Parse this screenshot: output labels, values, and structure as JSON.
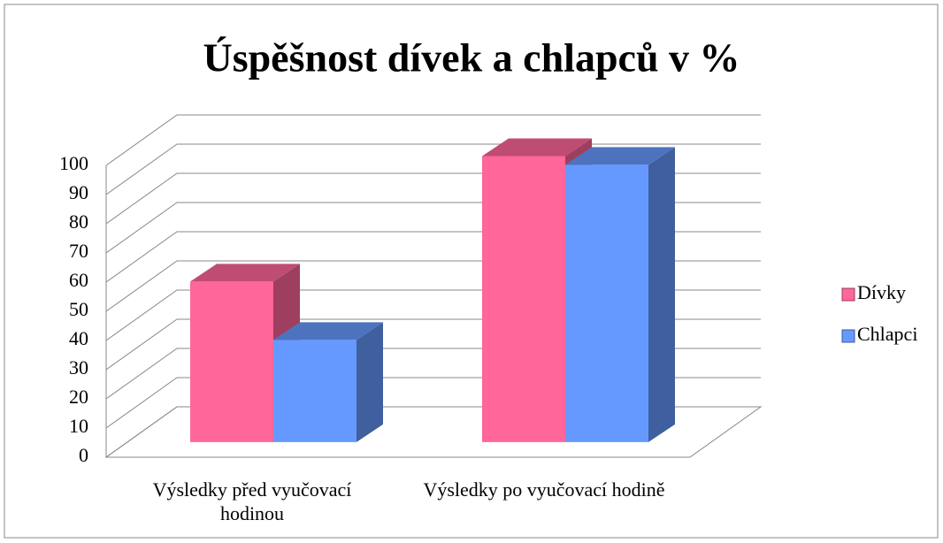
{
  "chart_data": {
    "type": "bar",
    "title": "Úspěšnost dívek a chlapců v %",
    "categories": [
      "Výsledky před vyučovací hodinou",
      "Výsledky po vyučovací hodině"
    ],
    "series": [
      {
        "name": "Dívky",
        "color": "#ff6699",
        "values": [
          55,
          98
        ]
      },
      {
        "name": "Chlapci",
        "color": "#6699ff",
        "values": [
          35,
          95
        ]
      }
    ],
    "ylim": [
      0,
      100
    ],
    "yticks": [
      0,
      10,
      20,
      30,
      40,
      50,
      60,
      70,
      80,
      90,
      100
    ],
    "grid": true,
    "legend": "right"
  }
}
